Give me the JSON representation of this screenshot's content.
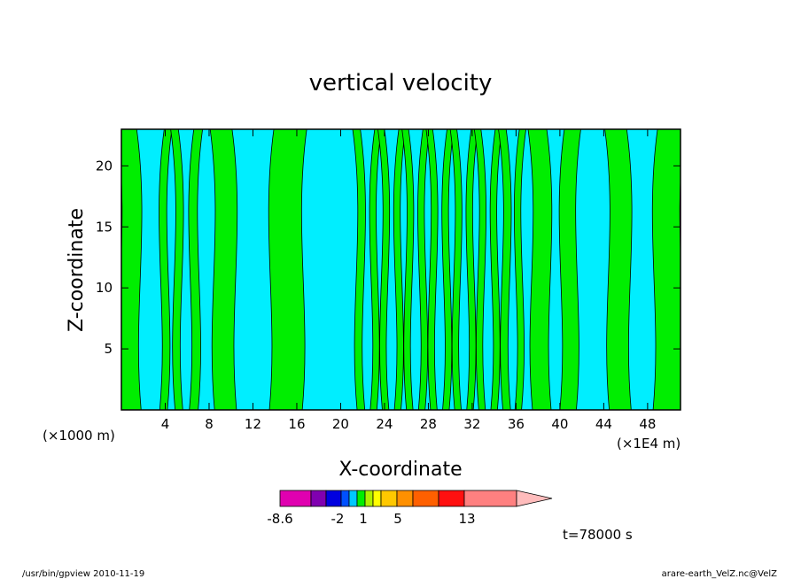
{
  "chart_data": {
    "type": "heatmap",
    "title": "vertical velocity",
    "xlabel": "X-coordinate",
    "ylabel": "Z-coordinate",
    "x_unit": "(×1E4 m)",
    "y_unit": "(×1000 m)",
    "xlim": [
      0,
      51
    ],
    "ylim": [
      0,
      23
    ],
    "x_ticks": [
      4,
      8,
      12,
      16,
      20,
      24,
      28,
      32,
      36,
      40,
      44,
      48
    ],
    "x_tick_labels": [
      "4",
      "8",
      "12",
      "16",
      "20",
      "24",
      "28",
      "32",
      "36",
      "40",
      "44",
      "48"
    ],
    "y_ticks": [
      5,
      10,
      15,
      20
    ],
    "y_tick_labels": [
      "5",
      "10",
      "15",
      "20"
    ],
    "grid": false,
    "field_colors": {
      "positive": "#00ee00",
      "negative": "#00eeff"
    },
    "bands_x": [
      [
        0.0,
        1.8
      ],
      [
        3.5,
        4.2
      ],
      [
        4.9,
        5.6
      ],
      [
        6.2,
        7.0
      ],
      [
        8.5,
        10.5
      ],
      [
        13.5,
        16.5
      ],
      [
        21.5,
        22.2
      ],
      [
        22.7,
        23.3
      ],
      [
        23.8,
        24.4
      ],
      [
        24.9,
        25.5
      ],
      [
        26.0,
        26.6
      ],
      [
        27.1,
        27.7
      ],
      [
        28.2,
        28.8
      ],
      [
        29.3,
        29.9
      ],
      [
        30.4,
        31.0
      ],
      [
        31.5,
        32.1
      ],
      [
        32.6,
        33.2
      ],
      [
        33.7,
        34.3
      ],
      [
        34.8,
        35.5
      ],
      [
        35.9,
        36.5
      ],
      [
        37.5,
        39.2
      ],
      [
        40.0,
        41.5
      ],
      [
        44.5,
        46.5
      ],
      [
        48.5,
        51.0
      ]
    ],
    "colorbar": {
      "colors": [
        "#e000b0",
        "#8000b0",
        "#0000e0",
        "#0050ff",
        "#00c8ff",
        "#00ee00",
        "#b0f000",
        "#ffff00",
        "#ffc800",
        "#ff9000",
        "#ff6000",
        "#ff1010",
        "#ff8080",
        "#ffbcbc"
      ],
      "tick_labels": [
        "-8.6",
        "-2",
        "1",
        "5",
        "13"
      ]
    },
    "time_label": "t=78000 s"
  },
  "footer": {
    "left": "/usr/bin/gpview   2010-11-19",
    "right": "arare-earth_VelZ.nc@VelZ"
  }
}
